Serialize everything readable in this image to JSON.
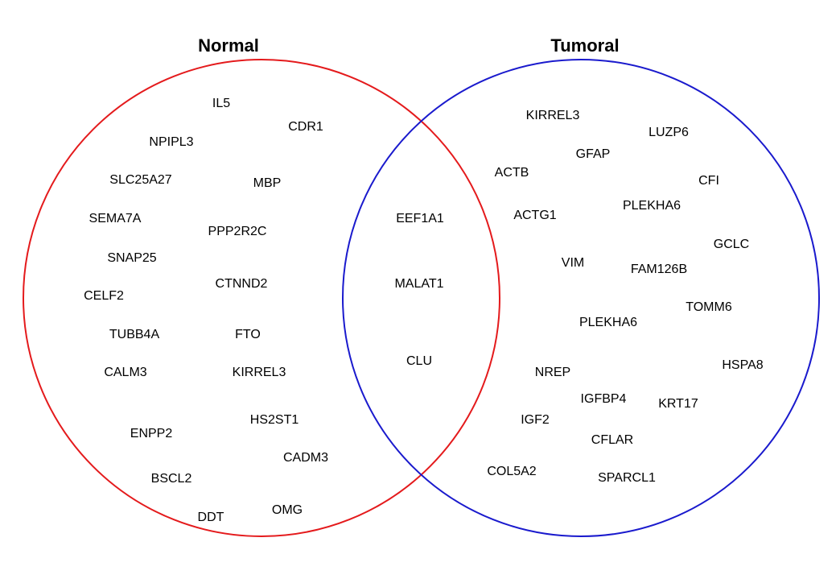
{
  "sets": [
    {
      "title": "Normal",
      "color": "#e41a1c"
    },
    {
      "title": "Tumoral",
      "color": "#1a1acd"
    }
  ],
  "genes": {
    "normal_only": [
      "IL5",
      "CDR1",
      "NPIPL3",
      "SLC25A27",
      "MBP",
      "SEMA7A",
      "PPP2R2C",
      "SNAP25",
      "CTNND2",
      "CELF2",
      "TUBB4A",
      "FTO",
      "CALM3",
      "KIRREL3",
      "HS2ST1",
      "ENPP2",
      "CADM3",
      "BSCL2",
      "OMG",
      "DDT"
    ],
    "shared": [
      "EEF1A1",
      "MALAT1",
      "CLU"
    ],
    "tumoral_only": [
      "KIRREL3",
      "LUZP6",
      "GFAP",
      "ACTB",
      "CFI",
      "PLEKHA6",
      "ACTG1",
      "GCLC",
      "VIM",
      "FAM126B",
      "TOMM6",
      "PLEKHA6",
      "HSPA8",
      "NREP",
      "IGFBP4",
      "KRT17",
      "IGF2",
      "CFLAR",
      "COL5A2",
      "SPARCL1"
    ]
  }
}
